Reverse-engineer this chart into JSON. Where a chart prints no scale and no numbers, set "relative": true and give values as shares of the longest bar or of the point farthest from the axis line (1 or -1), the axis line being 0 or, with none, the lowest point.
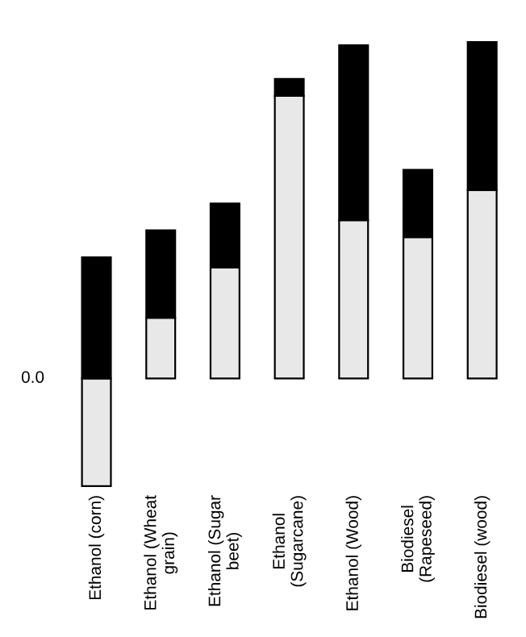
{
  "chart_data": {
    "type": "bar",
    "stacked": true,
    "relative": true,
    "legend": false,
    "categories": [
      "Ethanol (corn)",
      "Ethanol (Wheat\ngrain)",
      "Ethanol (Sugar\nbeet)",
      "Ethanol\n(Sugarcane)",
      "Ethanol (Wood)",
      "Biodiesel\n(Rapeseed)",
      "Biodiesel (wood)"
    ],
    "series": [
      {
        "color": "#e8e8e8",
        "values": [
          -0.32,
          0.18,
          0.33,
          0.84,
          0.47,
          0.42,
          0.56
        ]
      },
      {
        "color": "#000000",
        "values": [
          0.36,
          0.26,
          0.19,
          0.05,
          0.52,
          0.2,
          0.44
        ]
      }
    ],
    "annotations": [
      "0.0"
    ]
  }
}
